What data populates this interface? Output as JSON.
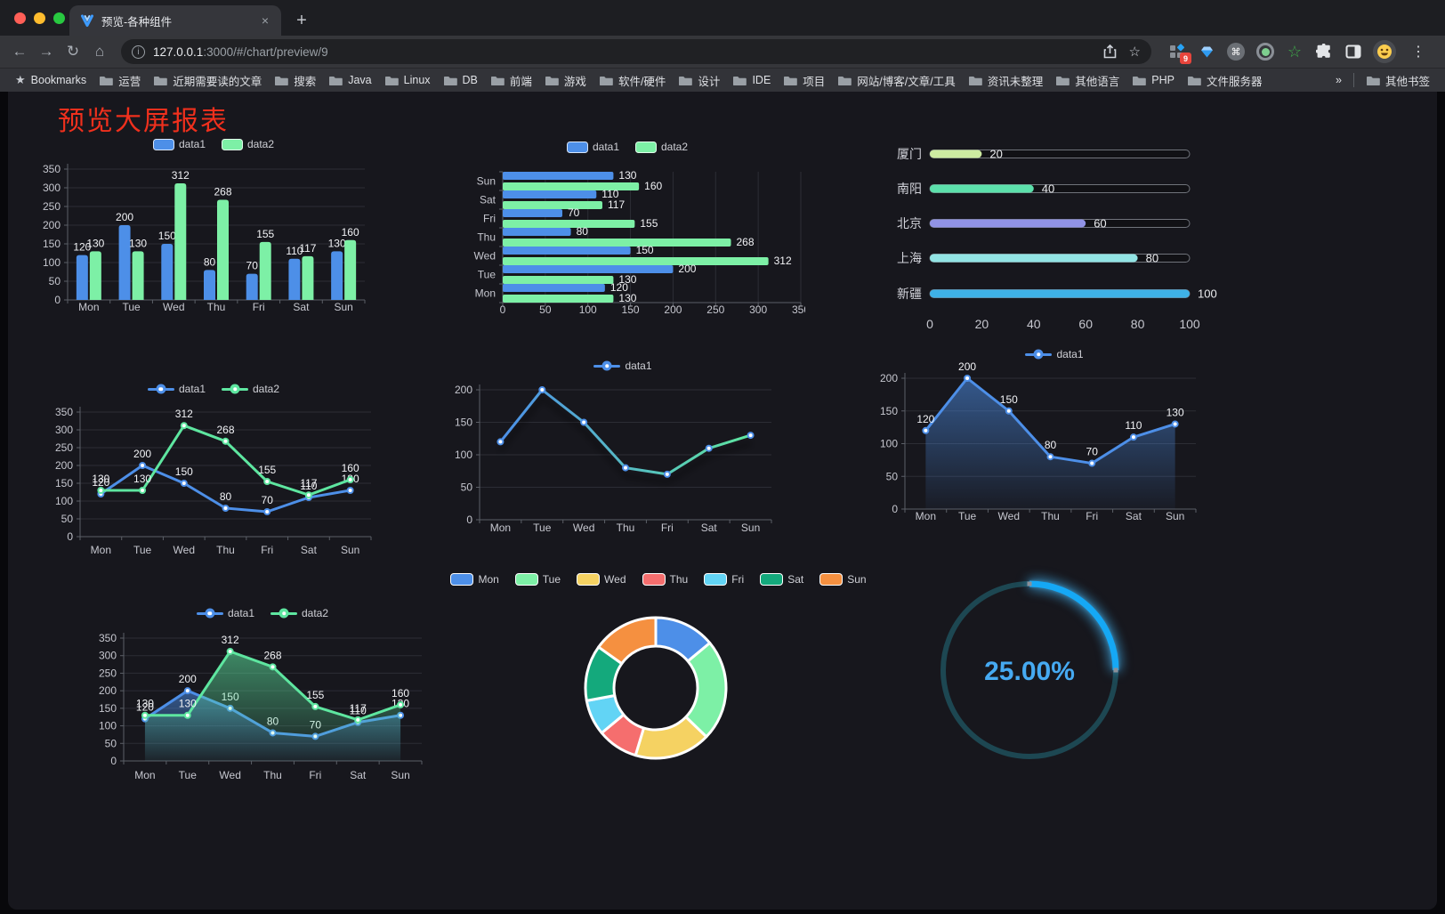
{
  "browser": {
    "tab": {
      "title": "预览-各种组件",
      "close_label": "×"
    },
    "new_tab_label": "+",
    "toolbar": {
      "url_host": "127.0.0.1",
      "url_path": ":3000/#/chart/preview/9",
      "extension_badge": "9"
    },
    "bookmarks_bar": {
      "star_label": "Bookmarks",
      "folders": [
        "运营",
        "近期需要读的文章",
        "搜索",
        "Java",
        "Linux",
        "DB",
        "前端",
        "游戏",
        "软件/硬件",
        "设计",
        "IDE",
        "项目",
        "网站/博客/文章/工具",
        "资讯未整理",
        "其他语言",
        "PHP",
        "文件服务器"
      ],
      "overflow": "»",
      "other": "其他书签"
    }
  },
  "page": {
    "title": "预览大屏报表"
  },
  "chart_data": [
    {
      "id": "grouped-bar-vertical",
      "type": "bar",
      "categories": [
        "Mon",
        "Tue",
        "Wed",
        "Thu",
        "Fri",
        "Sat",
        "Sun"
      ],
      "series": [
        {
          "name": "data1",
          "color": "#4d8fe8",
          "values": [
            120,
            200,
            150,
            80,
            70,
            110,
            130
          ]
        },
        {
          "name": "data2",
          "color": "#7df0a6",
          "values": [
            130,
            130,
            312,
            268,
            155,
            117,
            160
          ]
        }
      ],
      "ylim": [
        0,
        350
      ],
      "ytick_step": 50,
      "legend_position": "top",
      "grid": true
    },
    {
      "id": "grouped-bar-horizontal",
      "type": "bar-horizontal",
      "categories": [
        "Mon",
        "Tue",
        "Wed",
        "Thu",
        "Fri",
        "Sat",
        "Sun"
      ],
      "display_order_top_to_bottom": [
        "Sun",
        "Sat",
        "Fri",
        "Thu",
        "Wed",
        "Tue",
        "Mon"
      ],
      "series": [
        {
          "name": "data1",
          "color": "#4d8fe8",
          "values": [
            120,
            200,
            150,
            80,
            70,
            110,
            130
          ]
        },
        {
          "name": "data2",
          "color": "#7df0a6",
          "values": [
            130,
            130,
            312,
            268,
            155,
            117,
            160
          ]
        }
      ],
      "xlim": [
        0,
        350
      ],
      "xtick_step": 50,
      "legend_position": "top",
      "grid": true
    },
    {
      "id": "city-progress",
      "type": "progress-bars",
      "items": [
        {
          "label": "厦门",
          "value": 20,
          "color": "#cdeba1"
        },
        {
          "label": "南阳",
          "value": 40,
          "color": "#5ce0ab"
        },
        {
          "label": "北京",
          "value": 60,
          "color": "#9193e6"
        },
        {
          "label": "上海",
          "value": 80,
          "color": "#92e4e4"
        },
        {
          "label": "新疆",
          "value": 100,
          "color": "#3eb1e7"
        }
      ],
      "xlim": [
        0,
        100
      ],
      "xticks": [
        0,
        20,
        40,
        60,
        80,
        100
      ]
    },
    {
      "id": "line-two-series",
      "type": "line",
      "categories": [
        "Mon",
        "Tue",
        "Wed",
        "Thu",
        "Fri",
        "Sat",
        "Sun"
      ],
      "series": [
        {
          "name": "data1",
          "color": "#4d8fe8",
          "values": [
            120,
            200,
            150,
            80,
            70,
            110,
            130
          ]
        },
        {
          "name": "data2",
          "color": "#5ee6a0",
          "values": [
            130,
            130,
            312,
            268,
            155,
            117,
            160
          ]
        }
      ],
      "ylim": [
        0,
        350
      ],
      "ytick_step": 50,
      "show_labels": true,
      "legend_position": "top"
    },
    {
      "id": "line-gradient",
      "type": "line",
      "categories": [
        "Mon",
        "Tue",
        "Wed",
        "Thu",
        "Fri",
        "Sat",
        "Sun"
      ],
      "series": [
        {
          "name": "data1",
          "color": "#4d8fe8",
          "values": [
            120,
            200,
            150,
            80,
            70,
            110,
            130
          ],
          "line_gradient": [
            "#4d8fe8",
            "#5ee6a0"
          ]
        }
      ],
      "ylim": [
        0,
        200
      ],
      "ytick_step": 50,
      "show_labels": false,
      "legend_position": "top"
    },
    {
      "id": "area-single",
      "type": "area",
      "categories": [
        "Mon",
        "Tue",
        "Wed",
        "Thu",
        "Fri",
        "Sat",
        "Sun"
      ],
      "series": [
        {
          "name": "data1",
          "color": "#4d8fe8",
          "values": [
            120,
            200,
            150,
            80,
            70,
            110,
            130
          ],
          "area": true
        }
      ],
      "ylim": [
        0,
        200
      ],
      "ytick_step": 50,
      "show_labels": true,
      "legend_position": "top"
    },
    {
      "id": "area-two-series",
      "type": "area",
      "categories": [
        "Mon",
        "Tue",
        "Wed",
        "Thu",
        "Fri",
        "Sat",
        "Sun"
      ],
      "series": [
        {
          "name": "data1",
          "color": "#4d8fe8",
          "values": [
            120,
            200,
            150,
            80,
            70,
            110,
            130
          ],
          "area": true
        },
        {
          "name": "data2",
          "color": "#5ee6a0",
          "values": [
            130,
            130,
            312,
            268,
            155,
            117,
            160
          ],
          "area": true
        }
      ],
      "ylim": [
        0,
        350
      ],
      "ytick_step": 50,
      "show_labels": true,
      "legend_position": "top"
    },
    {
      "id": "donut-pie",
      "type": "pie",
      "labels": [
        "Mon",
        "Tue",
        "Wed",
        "Thu",
        "Fri",
        "Sat",
        "Sun"
      ],
      "values": [
        120,
        200,
        150,
        80,
        70,
        110,
        130
      ],
      "colors": [
        "#4d8fe8",
        "#7df0a6",
        "#f5d262",
        "#f56e6e",
        "#62d4f5",
        "#14a97c",
        "#f59040"
      ],
      "inner_radius_ratio": 0.6,
      "legend_position": "top"
    },
    {
      "id": "gauge-percent",
      "type": "gauge",
      "value_label": "25.00%",
      "percent": 25,
      "progress_color": "#15a8f5",
      "track_color": "#1d4752",
      "text_color": "#46aaf2"
    }
  ]
}
